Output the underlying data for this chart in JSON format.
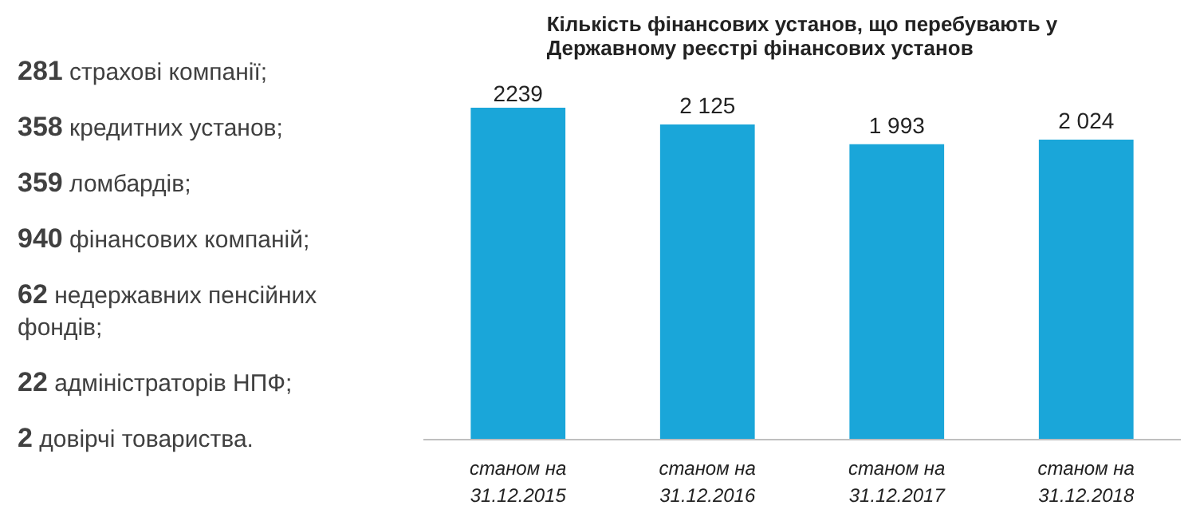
{
  "chart_data": {
    "type": "bar",
    "title": "Кількість фінансових установ, що перебувають у\nДержавному реєстрі фінансових установ",
    "categories": [
      "станом на\n31.12.2015",
      "станом на\n31.12.2016",
      "станом на\n31.12.2017",
      "станом на\n31.12.2018"
    ],
    "values": [
      2239,
      2125,
      1993,
      2024
    ],
    "value_labels": [
      "2239",
      "2 125",
      "1 993",
      "2 024"
    ],
    "color": "#1aa6d9",
    "tick_labels": "x",
    "grid": false,
    "annotations": [
      "281 страхові компанії;",
      "358 кредитних установ;",
      "359 ломбардів;",
      "940 фінансових компаній;",
      "62 недержавних пенсійних фондів;",
      "22 адміністраторів НПФ;",
      "2 довірчі товариства."
    ]
  }
}
